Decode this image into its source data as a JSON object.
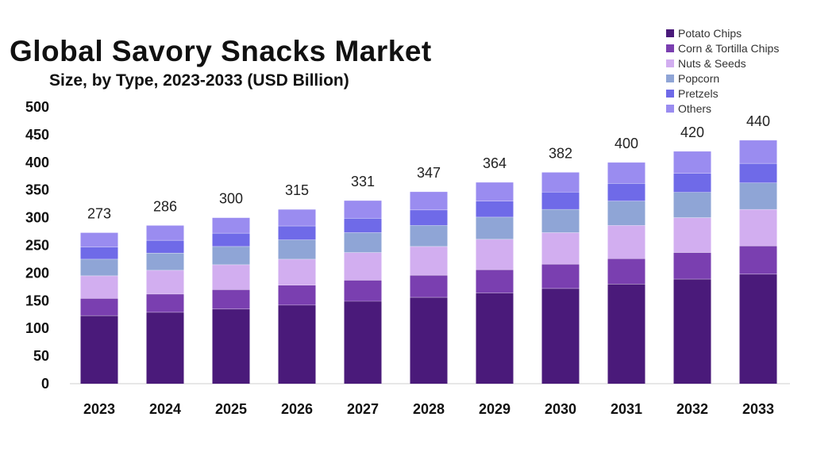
{
  "chart_data": {
    "type": "bar",
    "stacked": true,
    "title": "Global Savory Snacks Market",
    "subtitle": "Size, by Type, 2023-2033 (USD Billion)",
    "xlabel": "",
    "ylabel": "",
    "ylim": [
      0,
      500
    ],
    "yticks": [
      0,
      50,
      100,
      150,
      200,
      250,
      300,
      350,
      400,
      450,
      500
    ],
    "grid": false,
    "legend_position": "top-right",
    "categories": [
      "2023",
      "2024",
      "2025",
      "2026",
      "2027",
      "2028",
      "2029",
      "2030",
      "2031",
      "2032",
      "2033"
    ],
    "totals": [
      273,
      286,
      300,
      315,
      331,
      347,
      364,
      382,
      400,
      420,
      440
    ],
    "total_labels": [
      "273",
      "286",
      "300",
      "315",
      "331",
      "347",
      "364",
      "382",
      "400",
      "420",
      "440"
    ],
    "series": [
      {
        "name": "Potato Chips",
        "color": "#4a1a7a",
        "values": [
          123,
          129,
          135,
          142,
          149,
          156,
          164,
          172,
          180,
          189,
          198
        ]
      },
      {
        "name": "Corn & Tortilla Chips",
        "color": "#7a3fb0",
        "values": [
          31,
          33,
          35,
          36,
          38,
          40,
          42,
          44,
          46,
          48,
          51
        ]
      },
      {
        "name": "Nuts & Seeds",
        "color": "#d2aef0",
        "values": [
          41,
          43,
          45,
          47,
          50,
          52,
          55,
          57,
          60,
          63,
          66
        ]
      },
      {
        "name": "Popcorn",
        "color": "#8fa5d6",
        "values": [
          30,
          31,
          33,
          35,
          36,
          38,
          40,
          42,
          44,
          46,
          48
        ]
      },
      {
        "name": "Pretzels",
        "color": "#6f6ae8",
        "values": [
          22,
          23,
          24,
          25,
          26,
          28,
          29,
          31,
          32,
          34,
          35
        ]
      },
      {
        "name": "Others",
        "color": "#9a8cf0",
        "values": [
          26,
          27,
          28,
          30,
          32,
          33,
          34,
          36,
          38,
          40,
          42
        ]
      }
    ]
  }
}
